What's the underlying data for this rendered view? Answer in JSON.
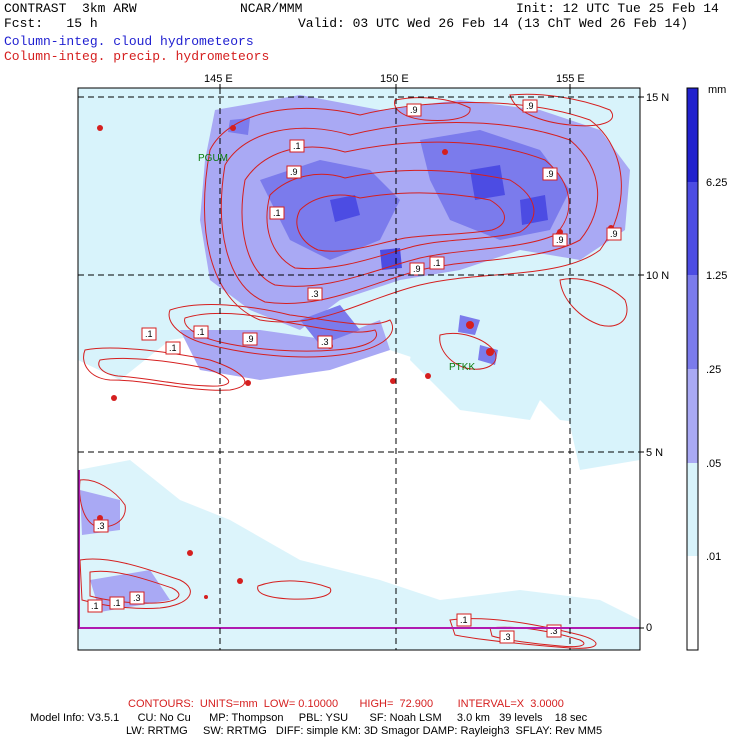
{
  "header": {
    "left_line1": "CONTRAST  3km ARW",
    "left_line2": "Fcst:   15 h",
    "center_line1": "NCAR/MMM",
    "right_line1": "Init: 12 UTC Tue 25 Feb 14",
    "right_line2": "Valid: 03 UTC Wed 26 Feb 14 (13 ChT Wed 26 Feb 14)",
    "field_cloud": "Column-integ. cloud hydrometeors",
    "field_precip": "Column-integ. precip. hydrometeors"
  },
  "axes": {
    "lon_labels": [
      "145 E",
      "150 E",
      "155 E"
    ],
    "lat_labels": [
      "15 N",
      "10 N",
      "5 N",
      "0"
    ]
  },
  "stations": [
    "PGUM",
    "PTKK"
  ],
  "contour_labels": [
    ".1",
    ".9",
    ".3"
  ],
  "legend": {
    "unit": "mm",
    "colors": [
      "#2121ce",
      "#4c4ce3",
      "#7b7bec",
      "#a9a9f4",
      "#d8f3fb",
      "#ffffff"
    ],
    "labels": [
      "6.25",
      "1.25",
      ".25",
      ".05",
      ".01"
    ]
  },
  "footer": {
    "contours": "CONTOURS:  UNITS=mm  LOW= 0.10000       HIGH=  72.900        INTERVAL=X  3.0000",
    "model_line1": "Model Info: V3.5.1      CU: No Cu      MP: Thompson     PBL: YSU       SF: Noah LSM     3.0 km   39 levels    18 sec",
    "model_line2": "LW: RRTMG     SW: RRTMG   DIFF: simple KM: 3D Smagor DAMP: Rayleigh3  SFLAY: Rev MM5"
  }
}
